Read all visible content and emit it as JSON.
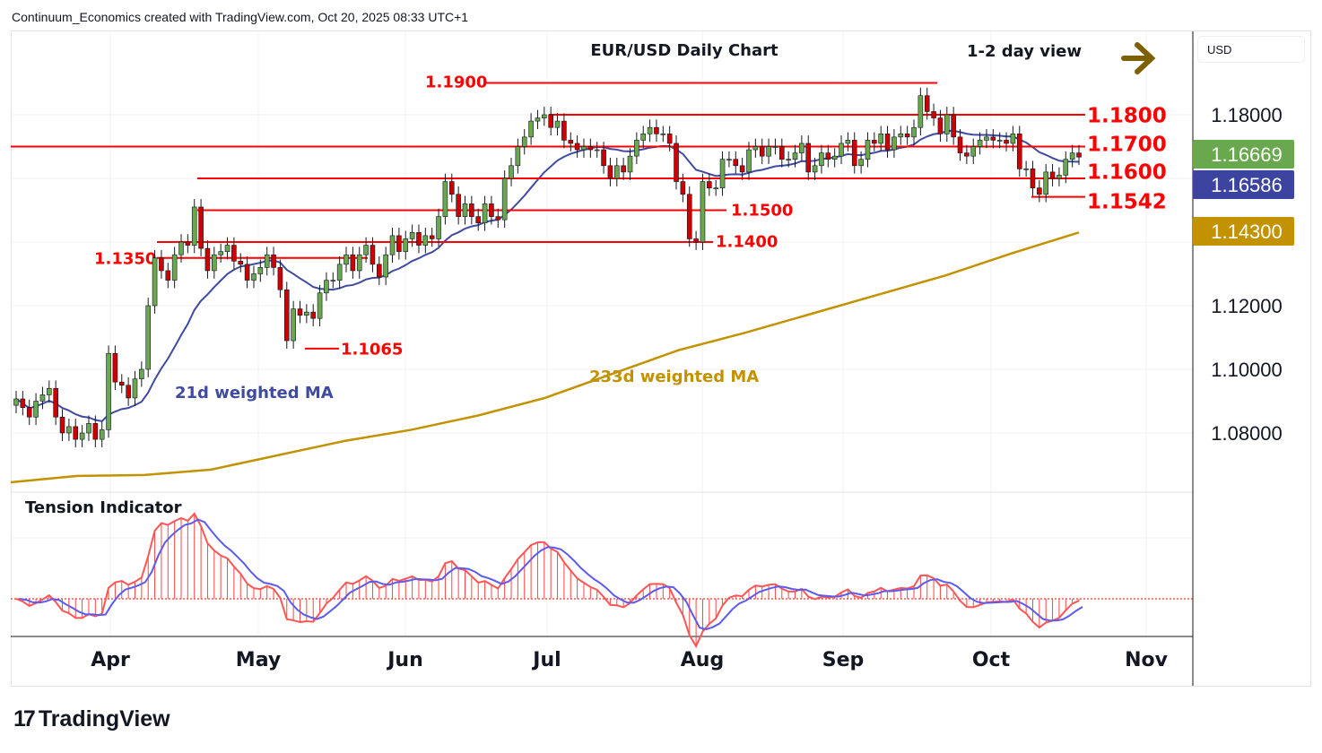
{
  "credit": "Continuum_Economics created with TradingView.com, Oct 20, 2025 08:33 UTC+1",
  "brand": "TradingView",
  "currency": "USD",
  "chart_data": {
    "type": "candlestick",
    "title": "EUR/USD Daily Chart",
    "view": "1-2 day view",
    "view_direction": "sideways",
    "x_ticks": [
      "Apr",
      "May",
      "Jun",
      "Jul",
      "Aug",
      "Sep",
      "Oct",
      "Nov"
    ],
    "y_ticks": [
      "1.18000",
      "1.12000",
      "1.10000",
      "1.08000"
    ],
    "ylim": [
      1.0625,
      1.2025
    ],
    "closes": [
      1.0907,
      1.088,
      1.085,
      1.09,
      1.092,
      1.094,
      1.085,
      1.08,
      1.082,
      1.078,
      1.08,
      1.083,
      1.078,
      1.081,
      1.105,
      1.096,
      1.095,
      1.091,
      1.097,
      1.1,
      1.12,
      1.135,
      1.131,
      1.128,
      1.136,
      1.14,
      1.139,
      1.151,
      1.138,
      1.131,
      1.136,
      1.137,
      1.139,
      1.134,
      1.133,
      1.128,
      1.13,
      1.132,
      1.136,
      1.132,
      1.125,
      1.109,
      1.119,
      1.117,
      1.118,
      1.116,
      1.124,
      1.128,
      1.128,
      1.133,
      1.136,
      1.131,
      1.136,
      1.139,
      1.133,
      1.129,
      1.136,
      1.142,
      1.137,
      1.141,
      1.143,
      1.139,
      1.142,
      1.141,
      1.148,
      1.159,
      1.155,
      1.148,
      1.152,
      1.148,
      1.146,
      1.152,
      1.148,
      1.147,
      1.16,
      1.164,
      1.17,
      1.173,
      1.178,
      1.179,
      1.18,
      1.176,
      1.178,
      1.172,
      1.171,
      1.169,
      1.17,
      1.169,
      1.169,
      1.164,
      1.16,
      1.164,
      1.162,
      1.167,
      1.172,
      1.174,
      1.176,
      1.174,
      1.174,
      1.171,
      1.159,
      1.155,
      1.141,
      1.14,
      1.159,
      1.157,
      1.157,
      1.166,
      1.166,
      1.164,
      1.162,
      1.169,
      1.17,
      1.167,
      1.17,
      1.17,
      1.166,
      1.166,
      1.168,
      1.171,
      1.162,
      1.164,
      1.168,
      1.166,
      1.167,
      1.171,
      1.172,
      1.164,
      1.166,
      1.172,
      1.171,
      1.174,
      1.169,
      1.173,
      1.174,
      1.173,
      1.176,
      1.186,
      1.181,
      1.179,
      1.174,
      1.18,
      1.173,
      1.168,
      1.167,
      1.17,
      1.172,
      1.173,
      1.172,
      1.172,
      1.171,
      1.174,
      1.163,
      1.163,
      1.157,
      1.155,
      1.162,
      1.16,
      1.161,
      1.166,
      1.168,
      1.1667
    ],
    "ma233": [
      1.0645,
      1.0665,
      1.0668,
      1.0685,
      1.073,
      1.0775,
      1.081,
      1.0855,
      1.091,
      1.0985,
      1.106,
      1.1115,
      1.1175,
      1.1235,
      1.1295,
      1.1365,
      1.143
    ],
    "series": [
      {
        "name": "21d weighted MA",
        "color": "#3f4ba0"
      },
      {
        "name": "233d weighted MA",
        "color": "#c39200"
      }
    ],
    "levels": [
      {
        "value": 1.19,
        "label": "1.1900"
      },
      {
        "value": 1.18,
        "label": "1.1800"
      },
      {
        "value": 1.17,
        "label": "1.1700"
      },
      {
        "value": 1.16,
        "label": "1.1600"
      },
      {
        "value": 1.1542,
        "label": "1.1542"
      },
      {
        "value": 1.15,
        "label": "1.1500"
      },
      {
        "value": 1.14,
        "label": "1.1400"
      },
      {
        "value": 1.135,
        "label": "1.1350"
      },
      {
        "value": 1.1065,
        "label": "1.1065"
      }
    ],
    "badges": [
      {
        "label": "1.16669",
        "value": 1.16669,
        "color": "#6aa84f"
      },
      {
        "label": "1.16586",
        "value": 1.16586,
        "color": "#3c44a0"
      },
      {
        "label": "1.14300",
        "value": 1.143,
        "color": "#c39200"
      }
    ],
    "indicator": {
      "title": "Tension Indicator"
    }
  }
}
